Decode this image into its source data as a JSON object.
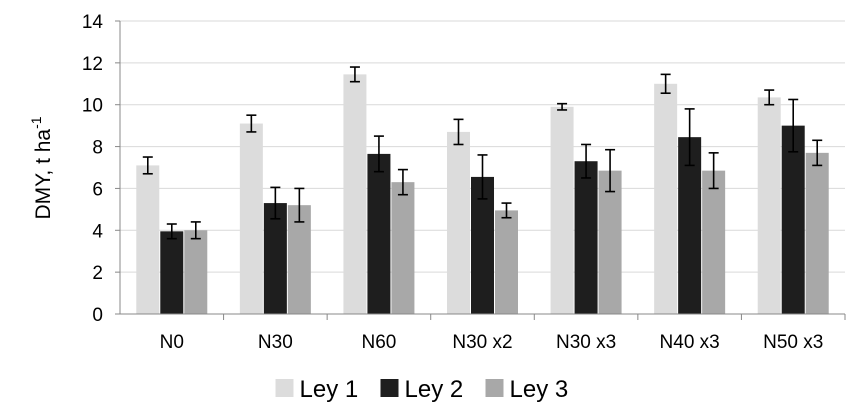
{
  "chart_data": {
    "type": "bar",
    "categories": [
      "N0",
      "N30",
      "N60",
      "N30 x2",
      "N30 x3",
      "N40 x3",
      "N50 x3"
    ],
    "series": [
      {
        "name": "Ley 1",
        "color": "#dcdcdc",
        "values": [
          7.1,
          9.1,
          11.45,
          8.7,
          9.9,
          11.0,
          10.35
        ],
        "errors": [
          0.4,
          0.4,
          0.35,
          0.6,
          0.15,
          0.45,
          0.35
        ]
      },
      {
        "name": "Ley 2",
        "color": "#1e1e1e",
        "values": [
          3.95,
          5.3,
          7.65,
          6.55,
          7.3,
          8.45,
          9.0
        ],
        "errors": [
          0.35,
          0.75,
          0.85,
          1.05,
          0.8,
          1.35,
          1.25
        ]
      },
      {
        "name": "Ley 3",
        "color": "#a8a8a8",
        "values": [
          4.0,
          5.2,
          6.3,
          4.95,
          6.85,
          6.85,
          7.7
        ],
        "errors": [
          0.4,
          0.8,
          0.6,
          0.35,
          1.0,
          0.85,
          0.6
        ]
      }
    ],
    "title": "",
    "xlabel": "",
    "ylabel": "DMY, t ha",
    "ylabel_superscript": "-1",
    "ylim": [
      0,
      14
    ],
    "yticks": [
      0,
      2,
      4,
      6,
      8,
      10,
      12,
      14
    ],
    "grid": "horizontal",
    "legend_position": "bottom",
    "gridline_color": "#d9d9d9",
    "axis_color": "#888888"
  }
}
